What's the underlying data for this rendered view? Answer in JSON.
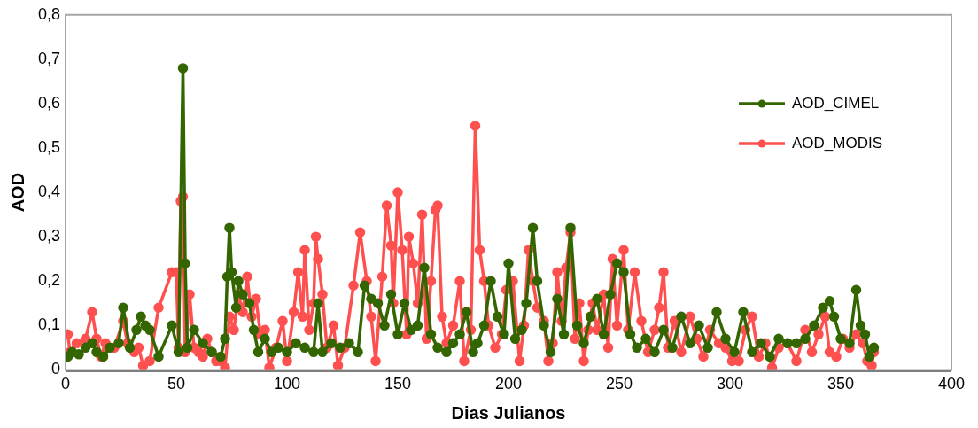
{
  "chart_data": {
    "type": "line",
    "xlabel": "Dias Julianos",
    "ylabel": "AOD",
    "legend": "right",
    "grid": false,
    "marker": "circle",
    "line_style": "solid",
    "xlim": [
      0,
      400
    ],
    "xticks": [
      0,
      50,
      100,
      150,
      200,
      250,
      300,
      350,
      400
    ],
    "ylim": [
      0,
      0.8
    ],
    "yticks": [
      0,
      {
        "value": 0.1,
        "label": "0,1"
      },
      {
        "value": 0.2,
        "label": "0,2"
      },
      {
        "value": 0.3,
        "label": "0,3"
      },
      {
        "value": 0.4,
        "label": "0,4"
      },
      {
        "value": 0.5,
        "label": "0,5"
      },
      {
        "value": 0.6,
        "label": "0,6"
      },
      {
        "value": 0.7,
        "label": "0,7"
      },
      {
        "value": 0.8,
        "label": "0,8"
      }
    ],
    "series": [
      {
        "name": "AOD_CIMEL",
        "color": "#336600",
        "x": [
          1,
          3,
          6,
          9,
          12,
          14,
          17,
          20,
          24,
          26,
          29,
          32,
          34,
          36,
          38,
          42,
          48,
          51,
          53,
          54,
          55,
          58,
          62,
          66,
          70,
          72,
          73,
          74,
          75,
          77,
          78,
          80,
          83,
          85,
          87,
          90,
          93,
          96,
          100,
          104,
          108,
          112,
          114,
          116,
          120,
          124,
          128,
          132,
          135,
          138,
          141,
          144,
          147,
          150,
          153,
          156,
          159,
          162,
          165,
          168,
          172,
          175,
          178,
          181,
          184,
          186,
          189,
          192,
          195,
          198,
          200,
          203,
          206,
          208,
          211,
          213,
          216,
          219,
          222,
          225,
          228,
          231,
          234,
          237,
          240,
          243,
          246,
          249,
          252,
          255,
          258,
          262,
          266,
          270,
          274,
          278,
          282,
          286,
          290,
          294,
          298,
          302,
          306,
          310,
          314,
          318,
          322,
          326,
          330,
          334,
          338,
          342,
          345,
          347,
          350,
          354,
          357,
          359,
          361,
          363,
          365
        ],
        "values": [
          0.03,
          0.04,
          0.035,
          0.05,
          0.06,
          0.04,
          0.03,
          0.05,
          0.06,
          0.14,
          0.05,
          0.09,
          0.12,
          0.1,
          0.09,
          0.03,
          0.1,
          0.04,
          0.68,
          0.24,
          0.05,
          0.09,
          0.06,
          0.04,
          0.03,
          0.07,
          0.21,
          0.32,
          0.22,
          0.14,
          0.2,
          0.17,
          0.15,
          0.09,
          0.04,
          0.07,
          0.04,
          0.05,
          0.04,
          0.06,
          0.05,
          0.04,
          0.15,
          0.04,
          0.06,
          0.05,
          0.06,
          0.04,
          0.19,
          0.16,
          0.15,
          0.1,
          0.17,
          0.08,
          0.15,
          0.09,
          0.1,
          0.23,
          0.08,
          0.05,
          0.04,
          0.06,
          0.08,
          0.13,
          0.04,
          0.06,
          0.1,
          0.2,
          0.12,
          0.08,
          0.24,
          0.07,
          0.09,
          0.15,
          0.32,
          0.2,
          0.1,
          0.04,
          0.16,
          0.08,
          0.32,
          0.1,
          0.06,
          0.12,
          0.16,
          0.08,
          0.17,
          0.24,
          0.22,
          0.08,
          0.05,
          0.07,
          0.04,
          0.09,
          0.05,
          0.12,
          0.06,
          0.1,
          0.05,
          0.13,
          0.07,
          0.04,
          0.13,
          0.04,
          0.06,
          0.03,
          0.07,
          0.06,
          0.06,
          0.07,
          0.1,
          0.14,
          0.155,
          0.12,
          0.07,
          0.06,
          0.18,
          0.1,
          0.08,
          0.03,
          0.05
        ]
      },
      {
        "name": "AOD_MODIS",
        "color": "#ff5050",
        "x": [
          1,
          2,
          5,
          9,
          12,
          14,
          16,
          18,
          22,
          26,
          28,
          31,
          33,
          35,
          38,
          42,
          48,
          50,
          51,
          52,
          53,
          54,
          56,
          58,
          60,
          62,
          64,
          66,
          68,
          70,
          72,
          74,
          76,
          78,
          80,
          82,
          84,
          86,
          88,
          90,
          92,
          95,
          98,
          100,
          103,
          105,
          107,
          108,
          110,
          112,
          113,
          114,
          116,
          118,
          121,
          123,
          126,
          130,
          133,
          136,
          138,
          140,
          143,
          145,
          147,
          148,
          150,
          152,
          154,
          155,
          157,
          159,
          161,
          163,
          165,
          167,
          168,
          170,
          172,
          175,
          178,
          180,
          183,
          185,
          187,
          189,
          191,
          194,
          197,
          199,
          202,
          205,
          207,
          209,
          211,
          213,
          216,
          218,
          220,
          222,
          224,
          226,
          228,
          230,
          232,
          234,
          236,
          238,
          240,
          243,
          245,
          247,
          249,
          252,
          254,
          257,
          260,
          263,
          266,
          268,
          270,
          272,
          275,
          278,
          282,
          285,
          288,
          291,
          295,
          298,
          301,
          304,
          307,
          310,
          313,
          316,
          319,
          322,
          326,
          330,
          334,
          337,
          340,
          343,
          345,
          348,
          351,
          354,
          357,
          360,
          362,
          364,
          365
        ],
        "values": [
          0.08,
          0.04,
          0.06,
          0.07,
          0.13,
          0.07,
          0.03,
          0.06,
          0.05,
          0.11,
          0.06,
          0.04,
          0.05,
          0.01,
          0.02,
          0.14,
          0.22,
          0.22,
          0.05,
          0.38,
          0.39,
          0.04,
          0.17,
          0.05,
          0.04,
          0.03,
          0.07,
          0.04,
          0.02,
          0.02,
          0.005,
          0.12,
          0.09,
          0.17,
          0.13,
          0.21,
          0.12,
          0.16,
          0.08,
          0.09,
          0.005,
          0.05,
          0.11,
          0.02,
          0.13,
          0.22,
          0.12,
          0.27,
          0.09,
          0.15,
          0.3,
          0.25,
          0.17,
          0.05,
          0.1,
          0.01,
          0.05,
          0.19,
          0.31,
          0.2,
          0.12,
          0.02,
          0.21,
          0.37,
          0.28,
          0.15,
          0.4,
          0.27,
          0.08,
          0.3,
          0.24,
          0.15,
          0.35,
          0.07,
          0.2,
          0.36,
          0.37,
          0.12,
          0.06,
          0.1,
          0.2,
          0.02,
          0.09,
          0.55,
          0.27,
          0.2,
          0.1,
          0.05,
          0.08,
          0.18,
          0.2,
          0.02,
          0.1,
          0.27,
          0.2,
          0.14,
          0.11,
          0.02,
          0.06,
          0.22,
          0.11,
          0.23,
          0.31,
          0.07,
          0.15,
          0.02,
          0.09,
          0.15,
          0.09,
          0.17,
          0.05,
          0.25,
          0.1,
          0.27,
          0.09,
          0.22,
          0.11,
          0.04,
          0.09,
          0.14,
          0.22,
          0.05,
          0.11,
          0.04,
          0.12,
          0.07,
          0.03,
          0.09,
          0.06,
          0.05,
          0.02,
          0.02,
          0.09,
          0.12,
          0.03,
          0.06,
          0.005,
          0.05,
          0.06,
          0.02,
          0.09,
          0.04,
          0.08,
          0.12,
          0.04,
          0.03,
          0.07,
          0.05,
          0.08,
          0.06,
          0.02,
          0.01,
          0.04
        ]
      }
    ]
  }
}
